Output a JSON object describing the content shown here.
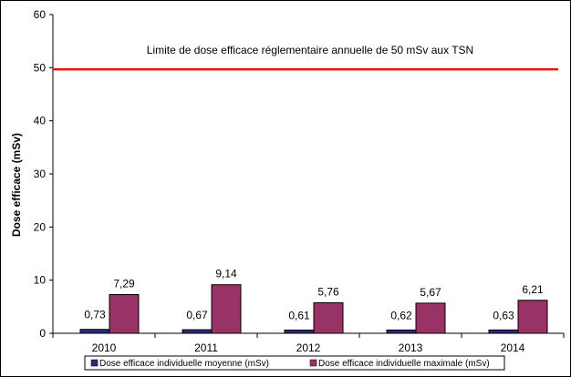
{
  "chart_data": {
    "type": "bar",
    "categories": [
      "2010",
      "2011",
      "2012",
      "2013",
      "2014"
    ],
    "series": [
      {
        "name": "Dose efficace individuelle moyenne (mSv)",
        "values": [
          0.73,
          0.67,
          0.61,
          0.62,
          0.63
        ],
        "labels": [
          "0,73",
          "0,67",
          "0,61",
          "0,62",
          "0,63"
        ],
        "color": "#2b2b7a"
      },
      {
        "name": "Dose efficace individuelle maximale (mSv)",
        "values": [
          7.29,
          9.14,
          5.76,
          5.67,
          6.21
        ],
        "labels": [
          "7,29",
          "9,14",
          "5,76",
          "5,67",
          "6,21"
        ],
        "color": "#993366"
      }
    ],
    "ylabel": "Dose efficace (mSv)",
    "ylim": [
      0,
      60
    ],
    "yticks": [
      "0",
      "10",
      "20",
      "30",
      "40",
      "50",
      "60"
    ],
    "reference_line": {
      "value": 49.7,
      "color": "#ff0000",
      "label": "Limite de dose efficace réglementaire annuelle de 50 mSv aux TSN"
    },
    "legend_position": "bottom",
    "grid": false
  }
}
